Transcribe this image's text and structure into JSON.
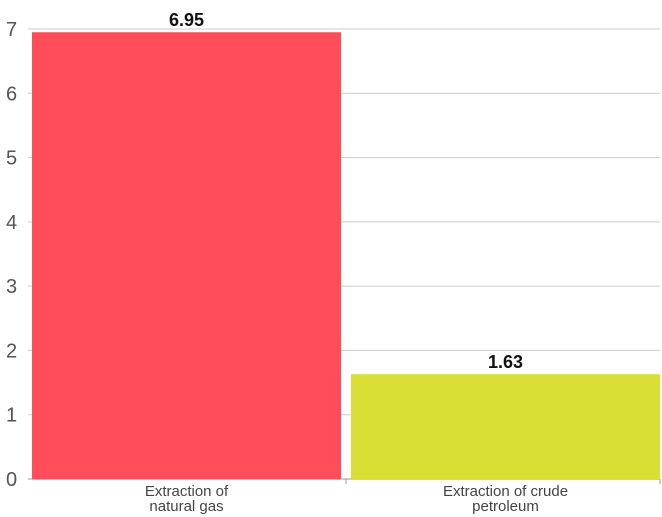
{
  "chart_data": {
    "type": "bar",
    "title": "",
    "xlabel": "",
    "ylabel": "",
    "categories": [
      [
        "Extraction of",
        "natural gas"
      ],
      [
        "Extraction of crude",
        "petroleum"
      ]
    ],
    "values": [
      6.95,
      1.63
    ],
    "value_labels": [
      "6.95",
      "1.63"
    ],
    "colors": [
      "#ff4d5a",
      "#d9df35"
    ],
    "ylim": [
      0,
      7
    ],
    "yticks": [
      0,
      1,
      2,
      3,
      4,
      5,
      6,
      7
    ],
    "grid": true,
    "legend": "none"
  }
}
